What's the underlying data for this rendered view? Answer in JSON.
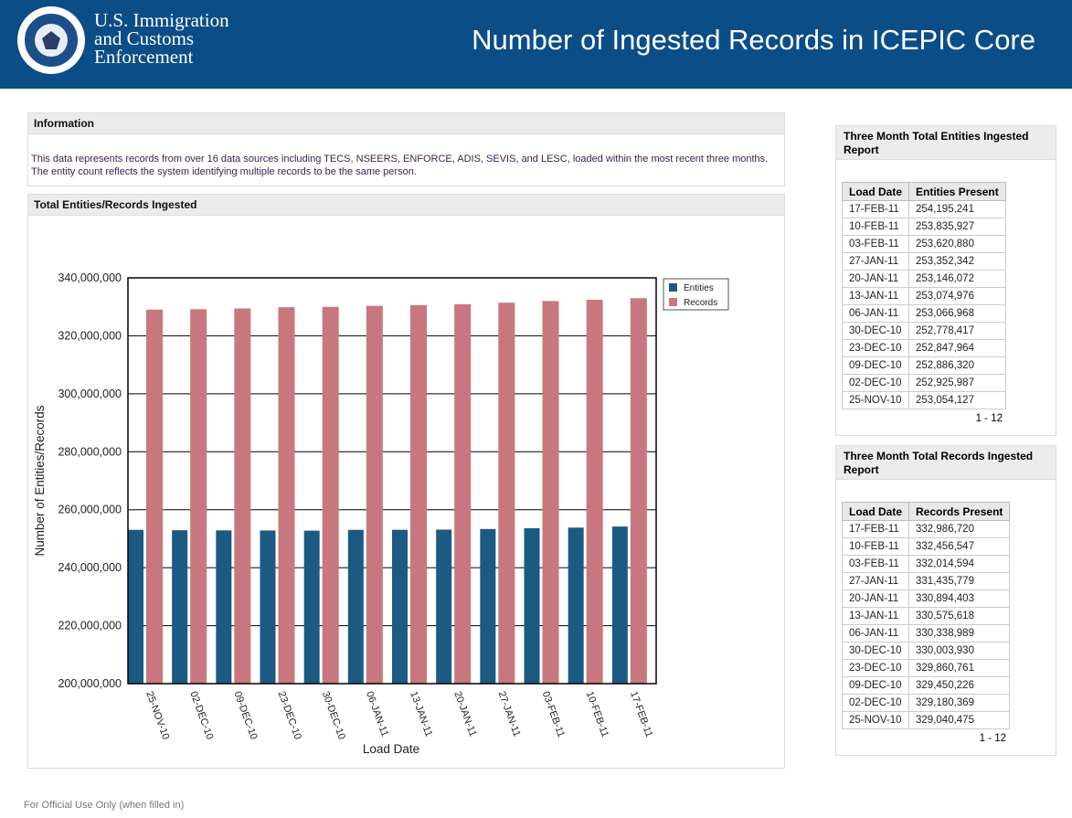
{
  "header": {
    "agency": "U.S. Immigration\nand Customs\nEnforcement",
    "title": "Number of Ingested Records in ICEPIC Core"
  },
  "info": {
    "heading": "Information",
    "text": "This data represents records from over 16 data sources including TECS, NSEERS, ENFORCE, ADIS, SEVIS, and LESC, loaded within the most recent three months. The entity count reflects the system identifying multiple records to be the same person."
  },
  "chart_data": {
    "type": "bar",
    "title": "Total Entities/Records Ingested",
    "x_label": "Load Date",
    "y_label": "Number of Entities/Records",
    "categories": [
      "25-NOV-10",
      "02-DEC-10",
      "09-DEC-10",
      "23-DEC-10",
      "30-DEC-10",
      "06-JAN-11",
      "13-JAN-11",
      "20-JAN-11",
      "27-JAN-11",
      "03-FEB-11",
      "10-FEB-11",
      "17-FEB-11"
    ],
    "series": [
      {
        "name": "Entities",
        "color": "#1b5a82",
        "values": [
          253054127,
          252925987,
          252886320,
          252847964,
          252778417,
          253066968,
          253074976,
          253146072,
          253352342,
          253620880,
          253835927,
          254195241
        ]
      },
      {
        "name": "Records",
        "color": "#c9777e",
        "values": [
          329040475,
          329180369,
          329450226,
          329860761,
          330003930,
          330338989,
          330575618,
          330894403,
          331435779,
          332014594,
          332456547,
          332986720
        ]
      }
    ],
    "ylim": [
      200000000,
      340000000
    ],
    "yticks": [
      {
        "value": 200000000,
        "label": "200,000,000"
      },
      {
        "value": 220000000,
        "label": "220,000,000"
      },
      {
        "value": 240000000,
        "label": "240,000,000"
      },
      {
        "value": 260000000,
        "label": "260,000,000"
      },
      {
        "value": 280000000,
        "label": "280,000,000"
      },
      {
        "value": 300000000,
        "label": "300,000,000"
      },
      {
        "value": 320000000,
        "label": "320,000,000"
      },
      {
        "value": 340000000,
        "label": "340,000,000"
      }
    ],
    "grid": true,
    "legend": "right"
  },
  "tables": [
    {
      "title": "Three Month Total Entities Ingested Report",
      "columns": [
        "Load Date",
        "Entities Present"
      ],
      "rows": [
        [
          "17-FEB-11",
          "254,195,241"
        ],
        [
          "10-FEB-11",
          "253,835,927"
        ],
        [
          "03-FEB-11",
          "253,620,880"
        ],
        [
          "27-JAN-11",
          "253,352,342"
        ],
        [
          "20-JAN-11",
          "253,146,072"
        ],
        [
          "13-JAN-11",
          "253,074,976"
        ],
        [
          "06-JAN-11",
          "253,066,968"
        ],
        [
          "30-DEC-10",
          "252,778,417"
        ],
        [
          "23-DEC-10",
          "252,847,964"
        ],
        [
          "09-DEC-10",
          "252,886,320"
        ],
        [
          "02-DEC-10",
          "252,925,987"
        ],
        [
          "25-NOV-10",
          "253,054,127"
        ]
      ],
      "pager": "1 - 12"
    },
    {
      "title": "Three Month Total Records Ingested Report",
      "columns": [
        "Load Date",
        "Records Present"
      ],
      "rows": [
        [
          "17-FEB-11",
          "332,986,720"
        ],
        [
          "10-FEB-11",
          "332,456,547"
        ],
        [
          "03-FEB-11",
          "332,014,594"
        ],
        [
          "27-JAN-11",
          "331,435,779"
        ],
        [
          "20-JAN-11",
          "330,894,403"
        ],
        [
          "13-JAN-11",
          "330,575,618"
        ],
        [
          "06-JAN-11",
          "330,338,989"
        ],
        [
          "30-DEC-10",
          "330,003,930"
        ],
        [
          "23-DEC-10",
          "329,860,761"
        ],
        [
          "09-DEC-10",
          "329,450,226"
        ],
        [
          "02-DEC-10",
          "329,180,369"
        ],
        [
          "25-NOV-10",
          "329,040,475"
        ]
      ],
      "pager": "1 - 12"
    }
  ],
  "footer": "For Official Use Only (when filled in)"
}
